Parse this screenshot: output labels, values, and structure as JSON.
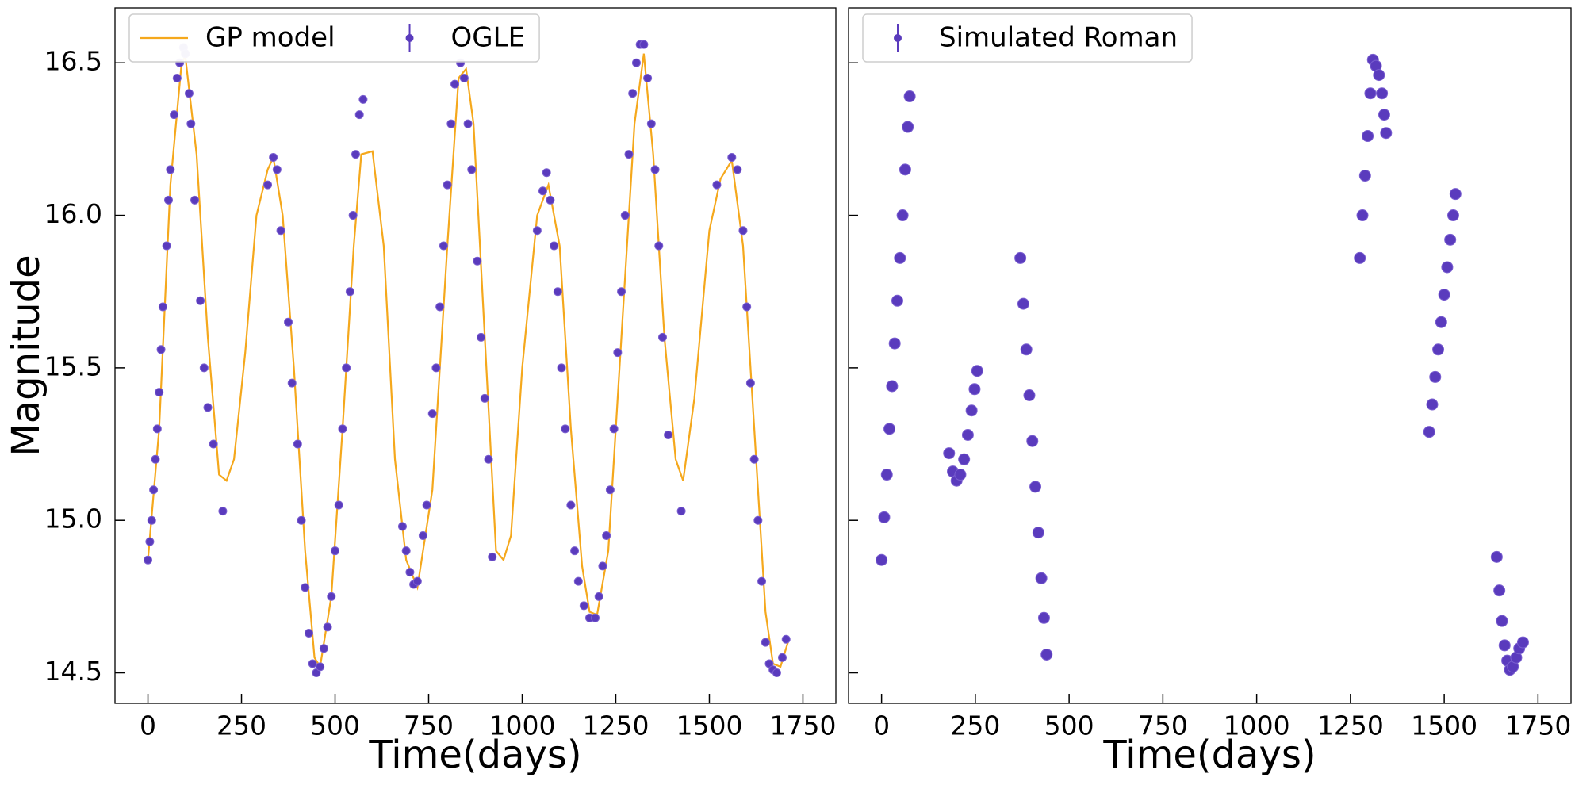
{
  "chart_data": [
    {
      "type": "line",
      "xlabel": "Time(days)",
      "ylabel": "Magnitude",
      "xlim": [
        -88,
        1838
      ],
      "ylim": [
        14.4,
        16.68
      ],
      "xticks": [
        0,
        250,
        500,
        750,
        1000,
        1250,
        1500,
        1750
      ],
      "yticks": [
        14.5,
        15.0,
        15.5,
        16.0,
        16.5
      ],
      "legend": "upper left",
      "series": [
        {
          "name": "GP model",
          "style": "line",
          "color": "#f5a81c",
          "x": [
            0,
            30,
            60,
            90,
            100,
            130,
            160,
            190,
            210,
            230,
            260,
            290,
            320,
            335,
            360,
            390,
            420,
            445,
            460,
            490,
            520,
            550,
            570,
            600,
            630,
            660,
            690,
            720,
            760,
            800,
            830,
            850,
            870,
            900,
            930,
            950,
            970,
            1000,
            1040,
            1070,
            1100,
            1130,
            1160,
            1180,
            1200,
            1230,
            1260,
            1300,
            1325,
            1350,
            1380,
            1410,
            1430,
            1460,
            1500,
            1530,
            1560,
            1590,
            1620,
            1650,
            1670,
            1690,
            1710
          ],
          "values": [
            14.87,
            15.3,
            16.1,
            16.5,
            16.52,
            16.2,
            15.6,
            15.15,
            15.13,
            15.2,
            15.55,
            16.0,
            16.15,
            16.19,
            16.0,
            15.5,
            14.9,
            14.55,
            14.52,
            14.75,
            15.3,
            15.9,
            16.2,
            16.21,
            15.9,
            15.2,
            14.87,
            14.78,
            15.1,
            15.9,
            16.45,
            16.48,
            16.3,
            15.6,
            14.9,
            14.87,
            14.95,
            15.5,
            16.0,
            16.1,
            15.9,
            15.3,
            14.85,
            14.7,
            14.69,
            14.9,
            15.5,
            16.3,
            16.53,
            16.2,
            15.6,
            15.2,
            15.13,
            15.4,
            15.95,
            16.12,
            16.18,
            15.9,
            15.3,
            14.7,
            14.53,
            14.52,
            14.6
          ]
        },
        {
          "name": "OGLE",
          "style": "points",
          "color": "#5a3bbd",
          "x": [
            0,
            5,
            10,
            15,
            20,
            25,
            30,
            35,
            40,
            50,
            55,
            60,
            70,
            78,
            85,
            95,
            100,
            110,
            115,
            125,
            140,
            150,
            160,
            175,
            200,
            320,
            335,
            345,
            355,
            375,
            385,
            400,
            410,
            420,
            430,
            440,
            450,
            460,
            470,
            480,
            490,
            500,
            510,
            520,
            530,
            540,
            548,
            555,
            565,
            575,
            680,
            690,
            700,
            710,
            720,
            735,
            745,
            760,
            770,
            780,
            790,
            800,
            810,
            820,
            835,
            845,
            855,
            865,
            880,
            890,
            900,
            910,
            920,
            1040,
            1055,
            1065,
            1075,
            1085,
            1095,
            1105,
            1115,
            1130,
            1140,
            1150,
            1165,
            1180,
            1195,
            1205,
            1215,
            1225,
            1235,
            1245,
            1255,
            1265,
            1275,
            1285,
            1295,
            1305,
            1315,
            1325,
            1335,
            1345,
            1355,
            1365,
            1375,
            1390,
            1425,
            1520,
            1560,
            1575,
            1590,
            1600,
            1610,
            1620,
            1630,
            1640,
            1650,
            1660,
            1670,
            1680,
            1695,
            1705
          ],
          "values": [
            14.87,
            14.93,
            15.0,
            15.1,
            15.2,
            15.3,
            15.42,
            15.56,
            15.7,
            15.9,
            16.05,
            16.15,
            16.33,
            16.45,
            16.5,
            16.55,
            16.53,
            16.4,
            16.3,
            16.05,
            15.72,
            15.5,
            15.37,
            15.25,
            15.03,
            16.1,
            16.19,
            16.15,
            15.95,
            15.65,
            15.45,
            15.25,
            15.0,
            14.78,
            14.63,
            14.53,
            14.5,
            14.52,
            14.58,
            14.65,
            14.75,
            14.9,
            15.05,
            15.3,
            15.5,
            15.75,
            16.0,
            16.2,
            16.33,
            16.38,
            14.98,
            14.9,
            14.83,
            14.79,
            14.8,
            14.95,
            15.05,
            15.35,
            15.5,
            15.7,
            15.9,
            16.1,
            16.3,
            16.43,
            16.5,
            16.45,
            16.3,
            16.15,
            15.85,
            15.6,
            15.4,
            15.2,
            14.88,
            15.95,
            16.08,
            16.14,
            16.05,
            15.9,
            15.75,
            15.5,
            15.3,
            15.05,
            14.9,
            14.8,
            14.72,
            14.68,
            14.68,
            14.75,
            14.85,
            14.95,
            15.1,
            15.3,
            15.55,
            15.75,
            16.0,
            16.2,
            16.4,
            16.5,
            16.56,
            16.56,
            16.45,
            16.3,
            16.15,
            15.9,
            15.6,
            15.28,
            15.03,
            16.1,
            16.19,
            16.15,
            15.95,
            15.7,
            15.45,
            15.2,
            15.0,
            14.8,
            14.6,
            14.53,
            14.51,
            14.5,
            14.55,
            14.61
          ]
        }
      ]
    },
    {
      "type": "scatter",
      "xlabel": "Time(days)",
      "xlim": [
        -88,
        1838
      ],
      "ylim": [
        14.4,
        16.68
      ],
      "xticks": [
        0,
        250,
        500,
        750,
        1000,
        1250,
        1500,
        1750
      ],
      "yticks": [
        14.5,
        15.0,
        15.5,
        16.0,
        16.5
      ],
      "legend": "upper left",
      "series": [
        {
          "name": "Simulated Roman",
          "style": "points",
          "color": "#5a3bbd",
          "x": [
            0,
            7,
            14,
            21,
            28,
            35,
            42,
            49,
            56,
            63,
            70,
            75,
            180,
            190,
            200,
            210,
            220,
            230,
            240,
            248,
            255,
            370,
            378,
            386,
            394,
            402,
            410,
            418,
            426,
            433,
            440,
            1275,
            1282,
            1289,
            1296,
            1303,
            1310,
            1318,
            1326,
            1334,
            1340,
            1345,
            1460,
            1468,
            1476,
            1484,
            1492,
            1500,
            1508,
            1516,
            1524,
            1530,
            1640,
            1647,
            1654,
            1661,
            1668,
            1675,
            1683,
            1692,
            1700,
            1710
          ],
          "values": [
            14.87,
            15.01,
            15.15,
            15.3,
            15.44,
            15.58,
            15.72,
            15.86,
            16.0,
            16.15,
            16.29,
            16.39,
            15.22,
            15.16,
            15.13,
            15.15,
            15.2,
            15.28,
            15.36,
            15.43,
            15.49,
            15.86,
            15.71,
            15.56,
            15.41,
            15.26,
            15.11,
            14.96,
            14.81,
            14.68,
            14.56,
            15.86,
            16.0,
            16.13,
            16.26,
            16.4,
            16.51,
            16.49,
            16.46,
            16.4,
            16.33,
            16.27,
            15.29,
            15.38,
            15.47,
            15.56,
            15.65,
            15.74,
            15.83,
            15.92,
            16.0,
            16.07,
            14.88,
            14.77,
            14.67,
            14.59,
            14.54,
            14.51,
            14.52,
            14.55,
            14.58,
            14.6
          ]
        }
      ]
    }
  ]
}
